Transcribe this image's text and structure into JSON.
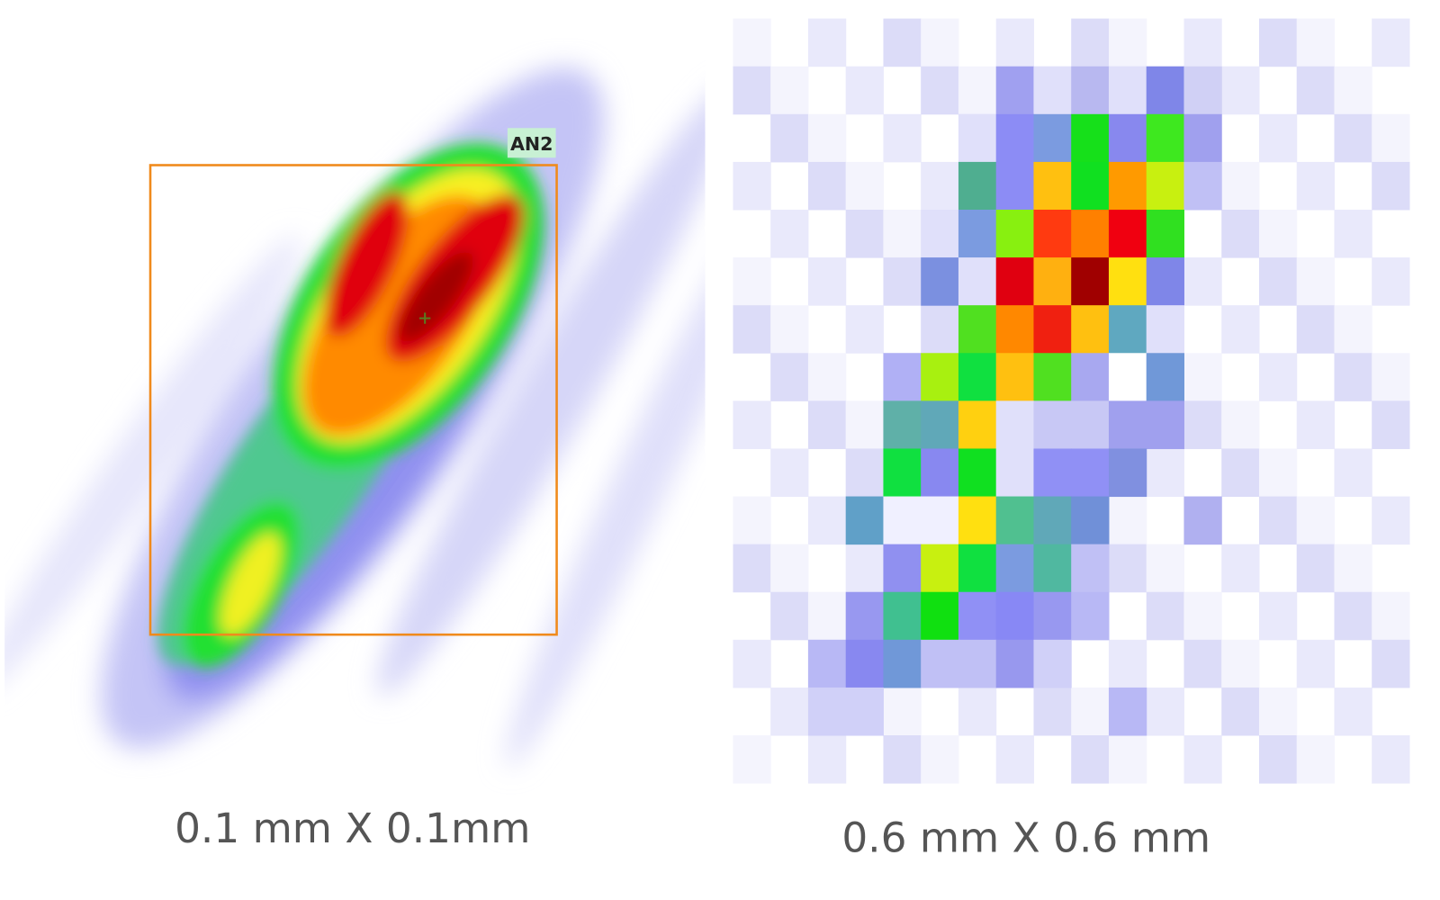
{
  "panels": [
    {
      "caption": "0.1 mm X 0.1mm",
      "label": "AN2"
    },
    {
      "caption": "0.6 mm X 0.6 mm"
    }
  ]
}
